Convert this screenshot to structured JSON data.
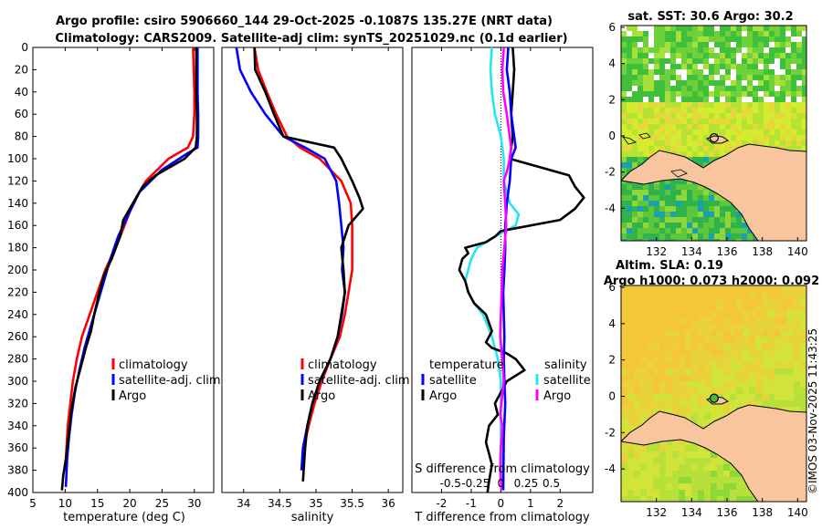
{
  "title_line1": "Argo profile: csiro 5906660_144 29-Oct-2025 -0.1087S 135.27E (NRT data)",
  "title_line2": "Climatology: CARS2009. Satellite-adj clim: synTS_20251029.nc (0.1d earlier)",
  "copyright": "©IMOS 03-Nov-2025 11:43:25",
  "colors": {
    "climatology": "#ff0000",
    "satellite": "#0000ff",
    "argo": "#000000",
    "temp_diff": "#22e6f0",
    "sal_diff": "#ff00ff",
    "land": "#f9c59e"
  },
  "chart_data": [
    {
      "id": "temperature",
      "type": "line",
      "xlabel": "temperature (deg C)",
      "ylabel": "depth",
      "xlim": [
        5,
        33
      ],
      "ylim": [
        0,
        400
      ],
      "xticks": [
        5,
        10,
        15,
        20,
        25,
        30
      ],
      "yticks": [
        0,
        20,
        40,
        60,
        80,
        100,
        120,
        140,
        160,
        180,
        200,
        220,
        240,
        260,
        280,
        300,
        320,
        340,
        360,
        380,
        400
      ],
      "legend": [
        "climatology",
        "satellite-adj. clim",
        "Argo"
      ],
      "series": [
        {
          "name": "climatology",
          "color": "#ff0000",
          "x": [
            29.8,
            29.9,
            30.0,
            30.0,
            29.8,
            29.0,
            26.0,
            22.5,
            20.5,
            19.2,
            17.8,
            16.2,
            15.0,
            13.8,
            12.6,
            11.8,
            11.2,
            10.8,
            10.4,
            10.2,
            10.0
          ],
          "y": [
            0,
            20,
            40,
            60,
            80,
            90,
            100,
            120,
            140,
            160,
            180,
            200,
            220,
            240,
            260,
            280,
            300,
            320,
            340,
            360,
            380
          ]
        },
        {
          "name": "satellite-adj. clim",
          "color": "#0000ff",
          "x": [
            30.5,
            30.5,
            30.5,
            30.6,
            30.6,
            30.5,
            29.0,
            25.0,
            21.5,
            19.8,
            18.2,
            17.0,
            16.0,
            15.0,
            14.0,
            13.0,
            12.2,
            11.5,
            11.0,
            10.6,
            10.3,
            10.1
          ],
          "y": [
            0,
            20,
            40,
            60,
            80,
            90,
            95,
            110,
            130,
            150,
            170,
            190,
            210,
            230,
            250,
            270,
            290,
            310,
            330,
            350,
            370,
            395
          ]
        },
        {
          "name": "Argo",
          "color": "#000000",
          "x": [
            30.3,
            30.3,
            30.3,
            30.4,
            30.4,
            30.2,
            28.5,
            24.0,
            22.0,
            20.5,
            19.0,
            18.5,
            17.2,
            16.0,
            15.3,
            14.5,
            14.0,
            13.2,
            12.3,
            11.6,
            11.0,
            10.7,
            10.4,
            10.1,
            9.7,
            9.5
          ],
          "y": [
            0,
            20,
            40,
            60,
            80,
            90,
            100,
            115,
            125,
            140,
            155,
            170,
            190,
            205,
            220,
            240,
            255,
            270,
            290,
            305,
            325,
            340,
            355,
            370,
            385,
            398
          ]
        }
      ]
    },
    {
      "id": "salinity",
      "type": "line",
      "xlabel": "salinity",
      "xlim": [
        33.7,
        36.2
      ],
      "ylim": [
        0,
        400
      ],
      "xticks": [
        34,
        34.5,
        35,
        35.5,
        36
      ],
      "xtick_labels": [
        "34",
        "34.5",
        "35",
        "35.5",
        "36"
      ],
      "legend": [
        "climatology",
        "satellite-adj. clim",
        "Argo"
      ],
      "series": [
        {
          "name": "climatology",
          "color": "#ff0000",
          "x": [
            34.15,
            34.2,
            34.32,
            34.45,
            34.6,
            34.78,
            35.05,
            35.35,
            35.48,
            35.5,
            35.5,
            35.5,
            35.45,
            35.4,
            35.33,
            35.2,
            35.08,
            34.98,
            34.9,
            34.83,
            34.8
          ],
          "y": [
            0,
            20,
            40,
            60,
            80,
            90,
            100,
            120,
            140,
            160,
            180,
            200,
            220,
            240,
            260,
            280,
            300,
            320,
            340,
            360,
            380
          ]
        },
        {
          "name": "satellite-adj. clim",
          "color": "#0000ff",
          "x": [
            33.9,
            33.95,
            34.1,
            34.3,
            34.55,
            34.85,
            35.12,
            35.28,
            35.32,
            35.35,
            35.38,
            35.36,
            35.4,
            35.36,
            35.3,
            35.2,
            35.05,
            34.95,
            34.88,
            34.82,
            34.8
          ],
          "y": [
            0,
            20,
            40,
            60,
            80,
            90,
            100,
            120,
            140,
            160,
            180,
            200,
            220,
            240,
            260,
            280,
            300,
            320,
            340,
            360,
            380
          ]
        },
        {
          "name": "Argo",
          "color": "#000000",
          "x": [
            34.15,
            34.16,
            34.3,
            34.42,
            34.55,
            35.25,
            35.35,
            35.5,
            35.6,
            35.65,
            35.45,
            35.35,
            35.38,
            35.4,
            35.35,
            35.3,
            35.2,
            35.05,
            34.95,
            34.88,
            34.85,
            34.82
          ],
          "y": [
            0,
            20,
            40,
            60,
            80,
            90,
            100,
            120,
            135,
            145,
            160,
            180,
            200,
            220,
            240,
            260,
            280,
            300,
            320,
            340,
            360,
            390
          ]
        }
      ]
    },
    {
      "id": "difference",
      "type": "line",
      "xlabel": "T difference from climatology",
      "top_xlabel": "S difference from climatology",
      "xlim": [
        -3,
        3.1
      ],
      "ylim": [
        0,
        400
      ],
      "xticks": [
        -2,
        -1,
        0,
        1,
        2
      ],
      "top_ticks": [
        -0.5,
        -0.25,
        0,
        0.25,
        0.5
      ],
      "top_tick_labels": [
        "-0.5",
        "-0.25",
        "0",
        "0.25",
        "0.5"
      ],
      "legend_temperature_title": "temperature",
      "legend_salinity_title": "salinity",
      "legend_temperature": [
        "satellite",
        "Argo"
      ],
      "legend_salinity": [
        "satellite",
        "Argo"
      ],
      "series": [
        {
          "name": "temperature satellite",
          "color": "#22e6f0",
          "x": [
            -0.3,
            -0.35,
            -0.3,
            -0.2,
            0,
            0.1,
            0.1,
            0.3,
            0.6,
            0.5,
            -0.2,
            -0.8,
            -1,
            -1.1,
            -1.2,
            -1.1,
            -0.9,
            -0.6,
            -0.3,
            -0.1,
            0,
            0,
            0,
            0.05
          ],
          "y": [
            0,
            20,
            40,
            60,
            80,
            100,
            120,
            140,
            150,
            160,
            170,
            180,
            190,
            200,
            210,
            220,
            230,
            240,
            260,
            280,
            300,
            320,
            360,
            398
          ]
        },
        {
          "name": "temperature Argo",
          "color": "#000000",
          "x": [
            0.4,
            0.45,
            0.4,
            0.35,
            0.4,
            0.3,
            2.3,
            2.5,
            2.8,
            2.5,
            2,
            0,
            -0.2,
            -0.5,
            -1.2,
            -1.1,
            -1.3,
            -1.4,
            -1.2,
            -1.1,
            -0.9,
            -0.5,
            -0.3,
            -0.5,
            -0.3,
            0.2,
            0.5,
            0.8,
            0.2,
            0,
            -0.2,
            -0.1,
            -0.4,
            -0.5,
            -0.4,
            -0.3,
            -0.4,
            -0.45
          ],
          "y": [
            0,
            20,
            40,
            60,
            80,
            100,
            115,
            125,
            135,
            145,
            155,
            165,
            170,
            175,
            180,
            185,
            190,
            200,
            210,
            220,
            230,
            240,
            255,
            265,
            270,
            275,
            280,
            290,
            300,
            310,
            320,
            330,
            340,
            355,
            365,
            375,
            390,
            400
          ]
        },
        {
          "name": "salinity satellite",
          "color": "#0000ff",
          "x": [
            0.25,
            0.2,
            0.3,
            0.35,
            0.45,
            0.5,
            0.35,
            0.3,
            0.2,
            0.15,
            0.15,
            0.12,
            0.08,
            0.1,
            0.12,
            0.1,
            0.12,
            0.15,
            0.1,
            0.08
          ],
          "y": [
            0,
            20,
            40,
            60,
            80,
            90,
            100,
            120,
            140,
            160,
            180,
            200,
            220,
            240,
            260,
            280,
            300,
            320,
            350,
            398
          ]
        },
        {
          "name": "salinity Argo",
          "color": "#ff00ff",
          "x": [
            0.1,
            0.05,
            0.08,
            0.2,
            0.3,
            0.35,
            0.3,
            0.22,
            0.1,
            0.15,
            0.18,
            0.12,
            0.05,
            0.03,
            0.0,
            -0.02,
            0.05,
            0.1,
            0.02,
            -0.02,
            0.05,
            0.03,
            0.0,
            -0.02,
            0.02
          ],
          "y": [
            0,
            20,
            40,
            60,
            80,
            90,
            100,
            110,
            120,
            140,
            160,
            180,
            200,
            220,
            240,
            260,
            280,
            300,
            320,
            330,
            340,
            350,
            360,
            380,
            398
          ]
        }
      ]
    },
    {
      "id": "map_sst",
      "type": "heatmap",
      "title": "sat. SST: 30.6 Argo: 30.2",
      "xlim": [
        130,
        140.5
      ],
      "ylim": [
        -5.8,
        6.1
      ],
      "xticks": [
        132,
        134,
        136,
        138,
        140
      ],
      "yticks": [
        -4,
        -2,
        0,
        2,
        4,
        6
      ],
      "argo_position": [
        135.27,
        -0.1087
      ]
    },
    {
      "id": "map_sla",
      "type": "heatmap",
      "title": "Altim. SLA: 0.19",
      "subtitle": "Argo h1000: 0.073 h2000: 0.092",
      "xlim": [
        130,
        140.5
      ],
      "ylim": [
        -5.8,
        6.1
      ],
      "xticks": [
        132,
        134,
        136,
        138,
        140
      ],
      "yticks": [
        -4,
        -2,
        0,
        2,
        4,
        6
      ],
      "argo_position": [
        135.27,
        -0.1087
      ]
    }
  ]
}
